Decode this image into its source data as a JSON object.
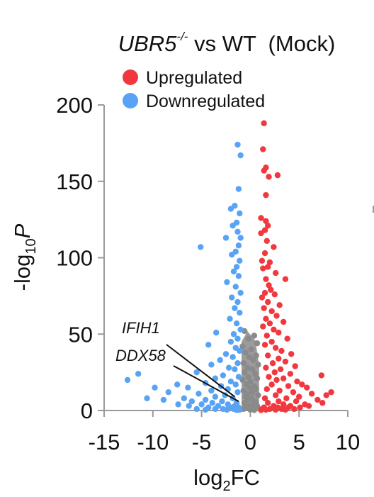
{
  "chart_data": {
    "type": "scatter",
    "title_gene": "UBR5",
    "title_superscript": "-/-",
    "title_rest": " vs WT  (Mock)",
    "xlabel_base": "log",
    "xlabel_sub": "2",
    "xlabel_tail": "FC",
    "ylabel_base": "-log",
    "ylabel_sub": "10",
    "ylabel_tail": "P",
    "xlim": [
      -15,
      10
    ],
    "ylim": [
      0,
      200
    ],
    "xticks": [
      -15,
      -10,
      -5,
      0,
      5,
      10
    ],
    "yticks": [
      0,
      50,
      100,
      150,
      200
    ],
    "legend_position": "top-left",
    "series": [
      {
        "name": "Upregulated",
        "color": "#f0383e",
        "points": [
          [
            1.4,
            188
          ],
          [
            1.3,
            171
          ],
          [
            1.6,
            159
          ],
          [
            1.4,
            157
          ],
          [
            1.9,
            153
          ],
          [
            2.8,
            154
          ],
          [
            1.6,
            141
          ],
          [
            1.1,
            126
          ],
          [
            1.6,
            124
          ],
          [
            1.8,
            121
          ],
          [
            1.5,
            118
          ],
          [
            1.1,
            116
          ],
          [
            1.7,
            111
          ],
          [
            2.4,
            107
          ],
          [
            1.5,
            103
          ],
          [
            1.2,
            98
          ],
          [
            2.0,
            97
          ],
          [
            1.8,
            94
          ],
          [
            1.3,
            93
          ],
          [
            2.6,
            90
          ],
          [
            1.6,
            86
          ],
          [
            1.9,
            82
          ],
          [
            2.1,
            79
          ],
          [
            3.6,
            86
          ],
          [
            1.5,
            77
          ],
          [
            2.5,
            76
          ],
          [
            1.2,
            74
          ],
          [
            1.8,
            71
          ],
          [
            3.0,
            69
          ],
          [
            1.4,
            67
          ],
          [
            2.2,
            65
          ],
          [
            2.7,
            62
          ],
          [
            1.6,
            60
          ],
          [
            3.4,
            58
          ],
          [
            2.0,
            57
          ],
          [
            1.3,
            55
          ],
          [
            2.4,
            53
          ],
          [
            2.9,
            51
          ],
          [
            1.7,
            49
          ],
          [
            3.8,
            47
          ],
          [
            2.2,
            45
          ],
          [
            1.5,
            43
          ],
          [
            2.6,
            41
          ],
          [
            3.2,
            39
          ],
          [
            4.2,
            37
          ],
          [
            1.8,
            36
          ],
          [
            2.9,
            34
          ],
          [
            3.6,
            32
          ],
          [
            2.3,
            31
          ],
          [
            4.6,
            29
          ],
          [
            1.6,
            28
          ],
          [
            3.1,
            27
          ],
          [
            2.5,
            25
          ],
          [
            4.1,
            24
          ],
          [
            7.3,
            23
          ],
          [
            1.9,
            22
          ],
          [
            3.4,
            21
          ],
          [
            2.7,
            20
          ],
          [
            4.8,
            19
          ],
          [
            5.3,
            17
          ],
          [
            2.2,
            17
          ],
          [
            3.9,
            16
          ],
          [
            5.8,
            15
          ],
          [
            1.7,
            14
          ],
          [
            3.0,
            13
          ],
          [
            4.4,
            12
          ],
          [
            6.3,
            11
          ],
          [
            8.3,
            12
          ],
          [
            7.8,
            10
          ],
          [
            2.6,
            10
          ],
          [
            5.0,
            9
          ],
          [
            1.5,
            8
          ],
          [
            3.7,
            8
          ],
          [
            6.9,
            7
          ],
          [
            2.9,
            6
          ],
          [
            4.7,
            6
          ],
          [
            7.4,
            5
          ],
          [
            1.8,
            5
          ],
          [
            3.4,
            4
          ],
          [
            5.6,
            4
          ],
          [
            2.4,
            3
          ],
          [
            4.1,
            3
          ],
          [
            6.0,
            3
          ],
          [
            1.4,
            2
          ],
          [
            2.8,
            2
          ],
          [
            3.9,
            2
          ],
          [
            5.1,
            2
          ],
          [
            1.2,
            1
          ],
          [
            2.0,
            1
          ],
          [
            3.2,
            1
          ],
          [
            4.5,
            1
          ],
          [
            1.6,
            0.5
          ],
          [
            2.6,
            0.5
          ],
          [
            3.6,
            0.5
          ],
          [
            1.1,
            0.3
          ]
        ]
      },
      {
        "name": "Downregulated",
        "color": "#58a3f4",
        "points": [
          [
            -1.3,
            174
          ],
          [
            -1.0,
            167
          ],
          [
            -1.2,
            145
          ],
          [
            -1.6,
            134
          ],
          [
            -2.0,
            132
          ],
          [
            -1.1,
            129
          ],
          [
            -1.4,
            123
          ],
          [
            -1.8,
            121
          ],
          [
            -1.3,
            117
          ],
          [
            -1.0,
            113
          ],
          [
            -2.5,
            113
          ],
          [
            -1.2,
            108
          ],
          [
            -5.1,
            107
          ],
          [
            -1.5,
            104
          ],
          [
            -1.9,
            102
          ],
          [
            -1.1,
            98
          ],
          [
            -1.4,
            94
          ],
          [
            -1.7,
            91
          ],
          [
            -1.2,
            88
          ],
          [
            -2.4,
            84
          ],
          [
            -1.5,
            81
          ],
          [
            -1.0,
            77
          ],
          [
            -1.9,
            74
          ],
          [
            -1.3,
            71
          ],
          [
            -1.6,
            67
          ],
          [
            -1.1,
            64
          ],
          [
            -2.1,
            60
          ],
          [
            -1.4,
            57
          ],
          [
            -1.0,
            53
          ],
          [
            -1.7,
            50
          ],
          [
            -3.5,
            51
          ],
          [
            -1.3,
            47
          ],
          [
            -2.0,
            45
          ],
          [
            -4.3,
            43
          ],
          [
            -1.5,
            41
          ],
          [
            -1.1,
            39
          ],
          [
            -2.5,
            37
          ],
          [
            -1.8,
            35
          ],
          [
            -3.1,
            33
          ],
          [
            -1.3,
            31
          ],
          [
            -4.0,
            30
          ],
          [
            -2.2,
            28
          ],
          [
            -1.6,
            27
          ],
          [
            -5.5,
            25
          ],
          [
            -11.5,
            24
          ],
          [
            -2.8,
            23
          ],
          [
            -1.2,
            22
          ],
          [
            -3.6,
            21
          ],
          [
            -12.6,
            20
          ],
          [
            -2.0,
            19
          ],
          [
            -4.6,
            18
          ],
          [
            -1.5,
            17
          ],
          [
            -7.5,
            17
          ],
          [
            -3.0,
            16
          ],
          [
            -6.4,
            15
          ],
          [
            -2.3,
            14
          ],
          [
            -9.8,
            15
          ],
          [
            -4.0,
            13
          ],
          [
            -1.3,
            12
          ],
          [
            -8.4,
            12
          ],
          [
            -5.3,
            11
          ],
          [
            -2.6,
            10
          ],
          [
            -10.6,
            8
          ],
          [
            -3.6,
            9
          ],
          [
            -6.8,
            8
          ],
          [
            -1.8,
            8
          ],
          [
            -4.6,
            7
          ],
          [
            -8.9,
            7
          ],
          [
            -2.9,
            6
          ],
          [
            -6.0,
            6
          ],
          [
            -1.4,
            5
          ],
          [
            -3.9,
            5
          ],
          [
            -7.4,
            4
          ],
          [
            -2.3,
            4
          ],
          [
            -5.0,
            4
          ],
          [
            -1.6,
            3
          ],
          [
            -3.3,
            3
          ],
          [
            -6.3,
            3
          ],
          [
            -2.0,
            2
          ],
          [
            -4.3,
            2
          ],
          [
            -1.2,
            2
          ],
          [
            -2.8,
            1
          ],
          [
            -5.5,
            1
          ],
          [
            -1.7,
            1
          ],
          [
            -3.6,
            1
          ],
          [
            -1.1,
            0.5
          ],
          [
            -2.4,
            0.5
          ],
          [
            -4.6,
            0.5
          ],
          [
            -1.4,
            0.3
          ]
        ]
      }
    ],
    "nonsignificant": {
      "color": "#8a8a8a",
      "points": [
        [
          -0.6,
          52
        ],
        [
          0.4,
          49
        ],
        [
          -0.2,
          47
        ],
        [
          0.7,
          44
        ],
        [
          -0.8,
          42
        ],
        [
          0.1,
          40
        ],
        [
          -0.5,
          38
        ],
        [
          0.6,
          36
        ],
        [
          -0.1,
          35
        ],
        [
          0.3,
          33
        ],
        [
          -0.7,
          31
        ],
        [
          0.8,
          30
        ],
        [
          -0.3,
          28
        ],
        [
          0.2,
          27
        ],
        [
          -0.6,
          25
        ],
        [
          0.5,
          24
        ],
        [
          -0.2,
          22
        ],
        [
          0.7,
          21
        ],
        [
          -0.8,
          20
        ],
        [
          0.0,
          19
        ],
        [
          -0.4,
          17
        ],
        [
          0.4,
          16
        ],
        [
          -0.1,
          15
        ],
        [
          0.6,
          14
        ],
        [
          -0.7,
          13
        ],
        [
          0.2,
          12
        ],
        [
          -0.3,
          11
        ],
        [
          0.8,
          10
        ],
        [
          -0.5,
          9
        ],
        [
          0.1,
          8
        ],
        [
          -0.2,
          7
        ],
        [
          0.5,
          6
        ],
        [
          -0.6,
          5
        ],
        [
          0.3,
          4
        ],
        [
          -0.1,
          3
        ],
        [
          0.7,
          3
        ],
        [
          -0.4,
          2
        ],
        [
          0.2,
          1
        ],
        [
          -0.7,
          1
        ],
        [
          0.0,
          0.5
        ],
        [
          0.4,
          0.3
        ]
      ]
    },
    "annotations": [
      {
        "label": "IFIH1",
        "point": [
          -1.6,
          9
        ]
      },
      {
        "label": "DDX58",
        "point": [
          -1.2,
          6
        ]
      }
    ]
  }
}
